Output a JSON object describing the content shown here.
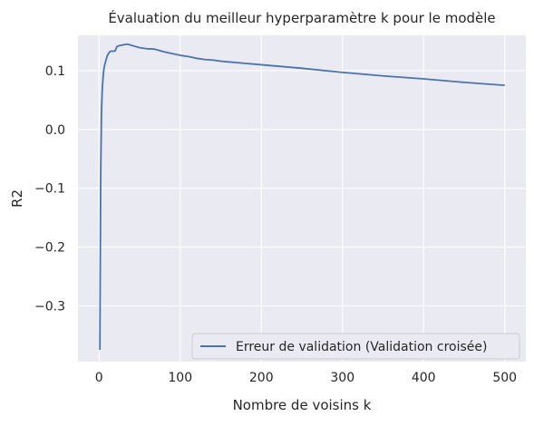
{
  "chart_data": {
    "type": "line",
    "title": "Évaluation du meilleur hyperparamètre k pour le modèle",
    "xlabel": "Nombre de voisins k",
    "ylabel": "R2",
    "xlim": [
      -26,
      526
    ],
    "ylim": [
      -0.395,
      0.16
    ],
    "xticks": [
      0,
      100,
      200,
      300,
      400,
      500
    ],
    "xtick_labels": [
      "0",
      "100",
      "200",
      "300",
      "400",
      "500"
    ],
    "yticks": [
      -0.3,
      -0.2,
      -0.1,
      0.0,
      0.1
    ],
    "ytick_labels": [
      "−0.3",
      "−0.2",
      "−0.1",
      "0.0",
      "0.1"
    ],
    "grid": true,
    "legend_position": "lower-right",
    "series": [
      {
        "name": "Erreur de validation (Validation croisée)",
        "color": "#4c72b0",
        "x": [
          1,
          2,
          3,
          4,
          5,
          6,
          7,
          8,
          9,
          10,
          12,
          14,
          16,
          18,
          20,
          22,
          24,
          26,
          28,
          30,
          35,
          40,
          45,
          50,
          55,
          60,
          65,
          70,
          75,
          80,
          90,
          100,
          110,
          120,
          130,
          140,
          150,
          175,
          200,
          250,
          300,
          350,
          400,
          450,
          500
        ],
        "y": [
          -0.375,
          -0.08,
          0.03,
          0.07,
          0.09,
          0.103,
          0.11,
          0.115,
          0.12,
          0.125,
          0.13,
          0.133,
          0.133,
          0.133,
          0.134,
          0.141,
          0.142,
          0.143,
          0.143,
          0.144,
          0.145,
          0.143,
          0.141,
          0.139,
          0.138,
          0.137,
          0.137,
          0.136,
          0.134,
          0.132,
          0.129,
          0.126,
          0.124,
          0.121,
          0.119,
          0.118,
          0.116,
          0.113,
          0.11,
          0.104,
          0.097,
          0.091,
          0.086,
          0.08,
          0.075
        ]
      }
    ]
  }
}
